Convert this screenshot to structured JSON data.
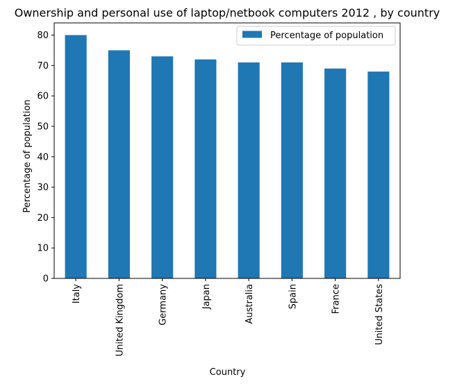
{
  "chart_data": {
    "type": "bar",
    "title": "Ownership and personal use of laptop/netbook computers 2012 , by country",
    "xlabel": "Country",
    "ylabel": "Percentage of population",
    "categories": [
      "Italy",
      "United Kingdom",
      "Germany",
      "Japan",
      "Australia",
      "Spain",
      "France",
      "United States"
    ],
    "series": [
      {
        "name": "Percentage of population",
        "values": [
          80,
          75,
          73,
          72,
          71,
          71,
          69,
          68
        ],
        "color": "#1f77b4"
      }
    ],
    "ylim": [
      0,
      84
    ],
    "yticks": [
      0,
      10,
      20,
      30,
      40,
      50,
      60,
      70,
      80
    ],
    "ytick_labels": [
      "0",
      "10",
      "20",
      "30",
      "40",
      "50",
      "60",
      "70",
      "80"
    ],
    "grid": false,
    "legend_position": "top-right"
  }
}
